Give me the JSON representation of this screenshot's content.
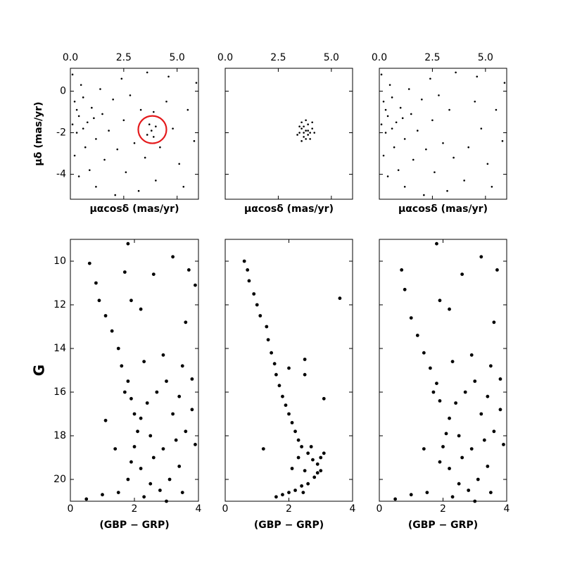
{
  "chart_data": [
    {
      "type": "scatter",
      "xlabel": "μαcosδ (mas/yr)",
      "ylabel": "μδ (mas/yr)",
      "x_axis_side": "top",
      "ytick_labels": true,
      "marker_size": 1.3,
      "color": "#000000",
      "xlim": [
        0,
        6.0
      ],
      "ylim": [
        -5.2,
        1.1
      ],
      "xticks": [
        {
          "value": 0,
          "label": "0.0"
        },
        {
          "value": 2.5,
          "label": "2.5"
        },
        {
          "value": 5,
          "label": "5.0"
        }
      ],
      "yticks": [
        0,
        -2,
        -4
      ],
      "x": [
        0.2,
        0.4,
        0.1,
        0.6,
        0.3,
        0.8,
        0.5,
        1.0,
        1.2,
        0.2,
        0.7,
        1.5,
        1.4,
        1.8,
        2.0,
        2.2,
        0.9,
        1.6,
        2.5,
        2.8,
        3.0,
        2.6,
        3.3,
        3.5,
        3.9,
        4.2,
        4.5,
        4.8,
        5.1,
        5.5,
        5.8,
        4.0,
        3.2,
        1.2,
        0.4,
        2.1,
        5.3,
        4.6,
        3.6,
        2.4,
        0.1,
        0.3,
        0.6,
        1.1,
        5.9,
        3.8,
        3.6,
        4.0,
        3.7,
        3.9
      ],
      "y": [
        -0.5,
        -1.2,
        0.8,
        -0.3,
        -2.0,
        -1.5,
        0.3,
        -0.8,
        -2.3,
        -3.1,
        -2.7,
        -1.1,
        0.1,
        -1.9,
        -0.4,
        -2.8,
        -3.8,
        -3.3,
        -1.4,
        -0.2,
        -2.5,
        -3.9,
        -0.9,
        -3.2,
        -1.0,
        -2.7,
        -0.5,
        -1.8,
        -3.5,
        -0.9,
        -2.4,
        -4.3,
        -4.8,
        -4.6,
        -4.1,
        -5.0,
        -4.6,
        0.7,
        0.9,
        0.6,
        -1.6,
        -0.9,
        -1.8,
        -1.3,
        0.4,
        -1.9,
        -2.1,
        -1.7,
        -1.6,
        -2.2
      ],
      "circle": {
        "x": 3.84,
        "y": -1.85,
        "r": 0.66,
        "color": "#e41a1c"
      }
    },
    {
      "type": "scatter",
      "xlabel": "μαcosδ (mas/yr)",
      "x_axis_side": "top",
      "ytick_labels": false,
      "marker_size": 1.3,
      "color": "#000000",
      "xlim": [
        0,
        6.0
      ],
      "ylim": [
        -5.2,
        1.1
      ],
      "xticks": [
        {
          "value": 0,
          "label": "0.0"
        },
        {
          "value": 2.5,
          "label": "2.5"
        },
        {
          "value": 5,
          "label": "5.0"
        }
      ],
      "yticks": [
        0,
        -2,
        -4
      ],
      "x": [
        3.8,
        3.6,
        4.0,
        3.7,
        3.9,
        3.5,
        4.1,
        3.8,
        3.6,
        4.0,
        3.7,
        3.9,
        3.5,
        4.2,
        3.8,
        3.4,
        4.1,
        3.6,
        3.9,
        3.7
      ],
      "y": [
        -1.9,
        -1.8,
        -2.0,
        -2.2,
        -1.6,
        -2.0,
        -1.8,
        -2.3,
        -1.5,
        -2.3,
        -1.7,
        -2.1,
        -1.7,
        -2.0,
        -1.4,
        -2.1,
        -1.5,
        -2.4,
        -1.9,
        -2.0
      ]
    },
    {
      "type": "scatter",
      "xlabel": "μαcosδ (mas/yr)",
      "x_axis_side": "top",
      "ytick_labels": true,
      "marker_size": 1.3,
      "color": "#000000",
      "xlim": [
        0,
        6.0
      ],
      "ylim": [
        -5.2,
        1.1
      ],
      "xticks": [
        {
          "value": 0,
          "label": "0.0"
        },
        {
          "value": 2.5,
          "label": "2.5"
        },
        {
          "value": 5,
          "label": "5.0"
        }
      ],
      "yticks": [
        0,
        -2,
        -4
      ],
      "x": [
        0.2,
        0.4,
        0.1,
        0.6,
        0.3,
        0.8,
        0.5,
        1.0,
        1.2,
        0.2,
        0.7,
        1.5,
        1.4,
        1.8,
        2.0,
        2.2,
        0.9,
        1.6,
        2.5,
        2.8,
        3.0,
        2.6,
        3.3,
        3.5,
        4.2,
        4.5,
        4.8,
        5.1,
        5.5,
        5.8,
        4.0,
        3.2,
        1.2,
        0.4,
        2.1,
        5.3,
        4.6,
        3.6,
        2.4,
        0.1,
        0.3,
        0.6,
        1.1,
        5.9
      ],
      "y": [
        -0.5,
        -1.2,
        0.8,
        -0.3,
        -2.0,
        -1.5,
        0.3,
        -0.8,
        -2.3,
        -3.1,
        -2.7,
        -1.1,
        0.1,
        -1.9,
        -0.4,
        -2.8,
        -3.8,
        -3.3,
        -1.4,
        -0.2,
        -2.5,
        -3.9,
        -0.9,
        -3.2,
        -2.7,
        -0.5,
        -1.8,
        -3.5,
        -0.9,
        -2.4,
        -4.3,
        -4.8,
        -4.6,
        -4.1,
        -5.0,
        -4.6,
        0.7,
        0.9,
        0.6,
        -1.6,
        -0.9,
        -1.8,
        -1.3,
        0.4
      ]
    },
    {
      "type": "scatter",
      "xlabel": "(GBP − GRP)",
      "ylabel": "G",
      "x_axis_side": "bottom",
      "ytick_labels": true,
      "marker_size": 2.4,
      "color": "#000000",
      "xlim": [
        0,
        4
      ],
      "ylim": [
        21,
        9
      ],
      "xticks": [
        0,
        2,
        4
      ],
      "yticks": [
        10,
        12,
        14,
        16,
        18,
        20
      ],
      "x": [
        0.6,
        0.8,
        0.9,
        1.1,
        1.3,
        1.5,
        1.6,
        1.8,
        1.9,
        2.0,
        2.1,
        2.0,
        1.9,
        1.8,
        1.5,
        1.0,
        0.5,
        2.2,
        2.5,
        2.8,
        3.1,
        2.6,
        2.9,
        3.3,
        3.6,
        3.9,
        3.4,
        2.4,
        2.7,
        3.0,
        3.4,
        3.8,
        2.3,
        2.9,
        3.5,
        3.8,
        1.7,
        1.8,
        2.6,
        3.2,
        3.7,
        3.9,
        1.9,
        2.2,
        3.6,
        1.1,
        1.4,
        2.3,
        3.0,
        3.5,
        2.5,
        2.2,
        3.2,
        1.7
      ],
      "y": [
        10.1,
        11,
        11.8,
        12.5,
        13.2,
        14,
        14.8,
        15.5,
        16.3,
        17,
        17.8,
        18.5,
        19.2,
        20,
        20.6,
        20.7,
        20.9,
        19.5,
        20.2,
        20.5,
        20.0,
        19,
        18.6,
        18.2,
        17.8,
        18.4,
        19.4,
        16.5,
        16,
        15.5,
        16.2,
        16.8,
        14.6,
        14.3,
        14.8,
        15.4,
        10.5,
        9.2,
        10.6,
        9.8,
        10.4,
        11.1,
        11.8,
        12.2,
        12.8,
        17.3,
        18.6,
        20.8,
        21,
        20.6,
        18,
        17.2,
        17,
        16
      ]
    },
    {
      "type": "scatter",
      "xlabel": "(GBP − GRP)",
      "x_axis_side": "bottom",
      "ytick_labels": false,
      "marker_size": 2.4,
      "color": "#000000",
      "xlim": [
        0,
        4
      ],
      "ylim": [
        21,
        9
      ],
      "xticks": [
        0,
        2,
        4
      ],
      "yticks": [
        10,
        12,
        14,
        16,
        18,
        20
      ],
      "x": [
        0.6,
        0.7,
        0.75,
        0.9,
        1.0,
        1.1,
        1.3,
        1.35,
        1.45,
        1.55,
        1.6,
        1.7,
        1.8,
        1.9,
        2.0,
        2.1,
        2.2,
        2.3,
        2.4,
        2.6,
        2.75,
        2.9,
        3.0,
        3.1,
        3.0,
        2.8,
        2.6,
        2.4,
        2.2,
        2.0,
        1.8,
        1.6,
        2.5,
        2.7,
        2.9,
        1.2,
        2.5,
        2.5,
        3.1,
        3.6,
        2.0,
        2.3,
        2.1,
        2.45
      ],
      "y": [
        10,
        10.4,
        10.9,
        11.5,
        12,
        12.5,
        13,
        13.6,
        14.2,
        14.7,
        15.2,
        15.7,
        16.2,
        16.6,
        17.0,
        17.4,
        17.8,
        18.2,
        18.5,
        18.8,
        19.1,
        19.3,
        19.0,
        18.8,
        19.6,
        19.9,
        20.2,
        20.3,
        20.5,
        20.6,
        20.7,
        20.8,
        19.6,
        18.5,
        19.7,
        18.6,
        14.5,
        15.2,
        16.3,
        11.7,
        14.9,
        19.0,
        19.5,
        20.6
      ]
    },
    {
      "type": "scatter",
      "xlabel": "(GBP − GRP)",
      "x_axis_side": "bottom",
      "ytick_labels": false,
      "marker_size": 2.4,
      "color": "#000000",
      "xlim": [
        0,
        4
      ],
      "ylim": [
        21,
        9
      ],
      "xticks": [
        0,
        2,
        4
      ],
      "yticks": [
        10,
        12,
        14,
        16,
        18,
        20
      ],
      "x": [
        0.7,
        0.8,
        1.0,
        1.2,
        1.4,
        1.6,
        1.8,
        1.9,
        2.1,
        2.0,
        1.9,
        1.5,
        1.0,
        0.5,
        2.2,
        2.5,
        2.8,
        3.1,
        2.6,
        2.9,
        3.3,
        3.6,
        3.9,
        3.4,
        2.4,
        2.7,
        3.0,
        3.4,
        3.8,
        2.3,
        2.9,
        3.5,
        3.8,
        1.8,
        2.6,
        3.2,
        3.7,
        1.9,
        2.2,
        3.6,
        1.4,
        2.3,
        3.0,
        3.5,
        2.5,
        2.2,
        3.2,
        1.7
      ],
      "y": [
        10.4,
        11.3,
        12.6,
        13.4,
        14.2,
        14.9,
        15.6,
        16.4,
        17.9,
        18.5,
        19.2,
        20.6,
        20.7,
        20.9,
        19.5,
        20.2,
        20.5,
        20.0,
        19,
        18.6,
        18.2,
        17.8,
        18.4,
        19.4,
        16.5,
        16,
        15.5,
        16.2,
        16.8,
        14.6,
        14.3,
        14.8,
        15.4,
        9.2,
        10.6,
        9.8,
        10.4,
        11.8,
        12.2,
        12.8,
        18.6,
        20.8,
        21,
        20.6,
        18,
        17.2,
        17,
        16
      ]
    }
  ]
}
